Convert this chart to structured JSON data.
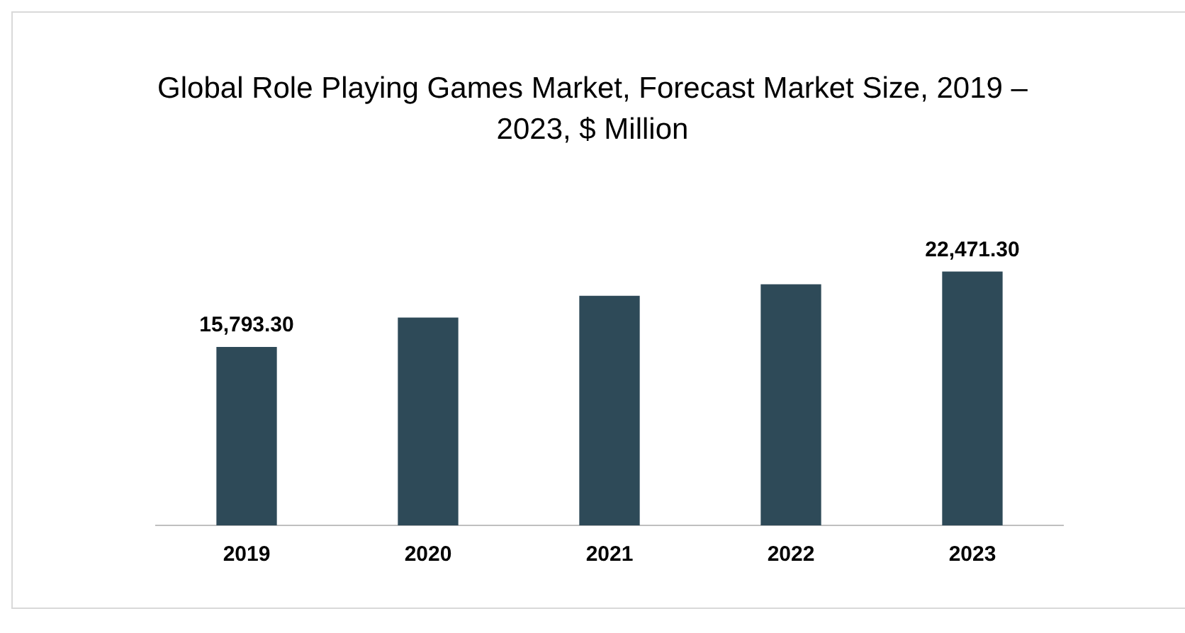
{
  "chart_data": {
    "type": "bar",
    "title": "Global Role Playing Games Market, Forecast Market Size, 2019 – 2023, $ Million",
    "categories": [
      "2019",
      "2020",
      "2021",
      "2022",
      "2023"
    ],
    "values": [
      15793.3,
      18390,
      20320,
      21340,
      22471.3
    ],
    "value_labels": [
      "15,793.30",
      null,
      null,
      null,
      "22,471.30"
    ],
    "color": "#2e4a58",
    "grid": false,
    "legend": false
  }
}
